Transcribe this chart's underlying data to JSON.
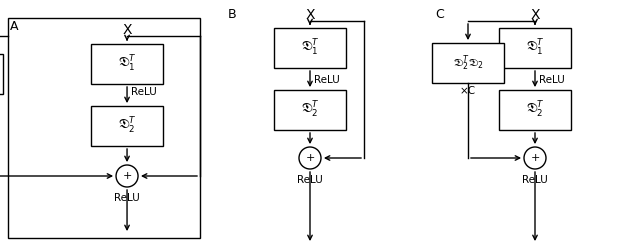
{
  "bg_color": "#ffffff",
  "text_color": "#000000",
  "box_color": "#ffffff",
  "box_edge_color": "#000000",
  "arrow_color": "#000000",
  "fig_width": 6.4,
  "fig_height": 2.49,
  "label_A": "A",
  "label_B": "B",
  "label_C": "C",
  "label_X": "X",
  "label_relu": "ReLU",
  "label_xC": "×C",
  "label_plus": "+",
  "box_D1T": "$\\mathfrak{D}_1^T$",
  "box_D2T": "$\\mathfrak{D}_2^T$",
  "box_D2TD2": "$\\mathfrak{D}_2^T\\mathfrak{D}_2$"
}
